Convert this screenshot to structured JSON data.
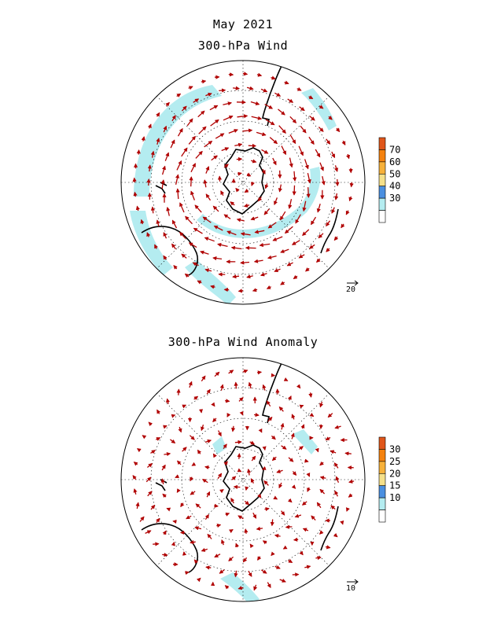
{
  "header": {
    "title": "May 2021"
  },
  "panels": [
    {
      "title": "300-hPa Wind",
      "reference_vector_label": "20",
      "colorbar": {
        "ticks": [
          "70",
          "60",
          "50",
          "40",
          "30"
        ],
        "colors": [
          "#ffffff",
          "#b4ecf0",
          "#4a8fe0",
          "#f5e08a",
          "#f7b13a",
          "#f5820e",
          "#e0561a"
        ]
      },
      "shaded_regions": "wind speed above 30 in a ring around Antarctica and several belts"
    },
    {
      "title": "300-hPa Wind Anomaly",
      "reference_vector_label": "10",
      "colorbar": {
        "ticks": [
          "30",
          "25",
          "20",
          "15",
          "10"
        ],
        "colors": [
          "#ffffff",
          "#b4ecf0",
          "#4a8fe0",
          "#f5e08a",
          "#f7b13a",
          "#f5820e",
          "#e0561a"
        ]
      },
      "shaded_regions": "small anomalies above 10"
    }
  ],
  "style": {
    "arrow_color": "#b00000",
    "shade_color": "#b4ecf0",
    "coast_color": "#000000"
  }
}
